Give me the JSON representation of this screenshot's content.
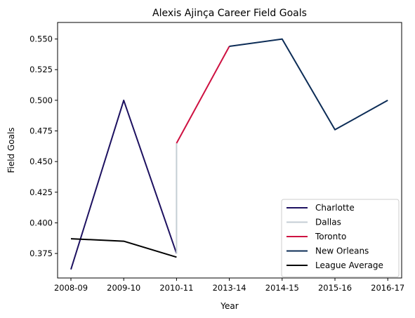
{
  "chart_data": {
    "type": "line",
    "title": "Alexis Ajinça Career Field Goals",
    "xlabel": "Year",
    "ylabel": "Field Goals",
    "categories": [
      "2008-09",
      "2009-10",
      "2010-11",
      "2013-14",
      "2014-15",
      "2015-16",
      "2016-17"
    ],
    "ylim": [
      0.355,
      0.5635
    ],
    "yticks": [
      "0.375",
      "0.400",
      "0.425",
      "0.450",
      "0.475",
      "0.500",
      "0.525",
      "0.550"
    ],
    "grid": false,
    "legend_position": "lower-right",
    "series": [
      {
        "name": "Charlotte",
        "color": "#1d1160",
        "points": [
          [
            0,
            0.362
          ],
          [
            1,
            0.5
          ],
          [
            2,
            0.375
          ]
        ]
      },
      {
        "name": "Dallas",
        "color": "#c4ced4",
        "points": [
          [
            2,
            0.375
          ],
          [
            2,
            0.465
          ]
        ]
      },
      {
        "name": "Toronto",
        "color": "#ce1141",
        "points": [
          [
            2,
            0.465
          ],
          [
            3,
            0.544
          ]
        ]
      },
      {
        "name": "New Orleans",
        "color": "#0c2c56",
        "points": [
          [
            3,
            0.544
          ],
          [
            4,
            0.55
          ],
          [
            5,
            0.476
          ],
          [
            6,
            0.5
          ]
        ]
      },
      {
        "name": "League Average",
        "color": "#000000",
        "points": [
          [
            0,
            0.387
          ],
          [
            1,
            0.385
          ],
          [
            2,
            0.372
          ]
        ]
      }
    ]
  }
}
